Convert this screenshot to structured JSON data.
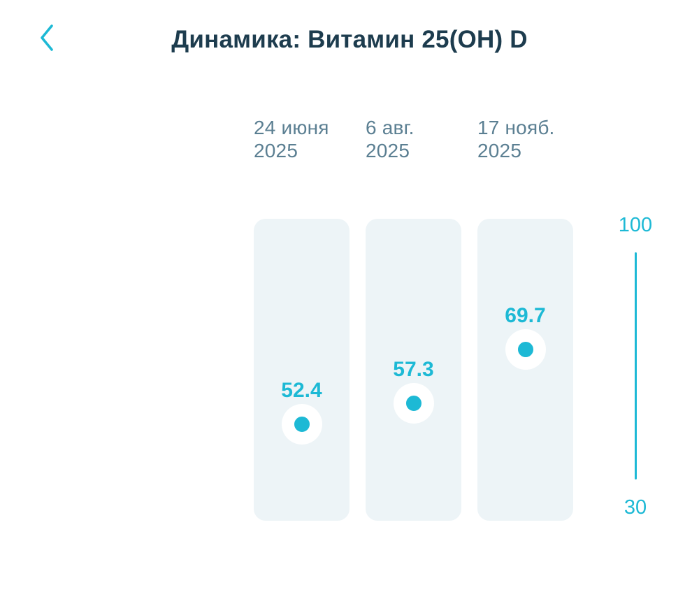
{
  "colors": {
    "accent": "#1db9d5",
    "column_bg": "#edf4f7",
    "title_text": "#1d3c4e",
    "date_text": "#5b7f92",
    "background": "#ffffff"
  },
  "header": {
    "title": "Динамика: Витамин 25(OH) D",
    "back_icon": "chevron-left"
  },
  "chart_data": {
    "type": "scatter",
    "title": "Динамика: Витамин 25(OH) D",
    "categories": [
      "24 июня 2025",
      "6 авг. 2025",
      "17 нояб. 2025"
    ],
    "values": [
      52.4,
      57.3,
      69.7
    ],
    "ylim": [
      30,
      100
    ],
    "grid": false,
    "legend_position": "none",
    "axis": {
      "max_label": "100",
      "min_label": "30"
    },
    "points": [
      {
        "date_line1": "24 июня",
        "date_line2": "2025",
        "value_label": "52.4"
      },
      {
        "date_line1": "6 авг.",
        "date_line2": "2025",
        "value_label": "57.3"
      },
      {
        "date_line1": "17 нояб.",
        "date_line2": "2025",
        "value_label": "69.7"
      }
    ]
  }
}
